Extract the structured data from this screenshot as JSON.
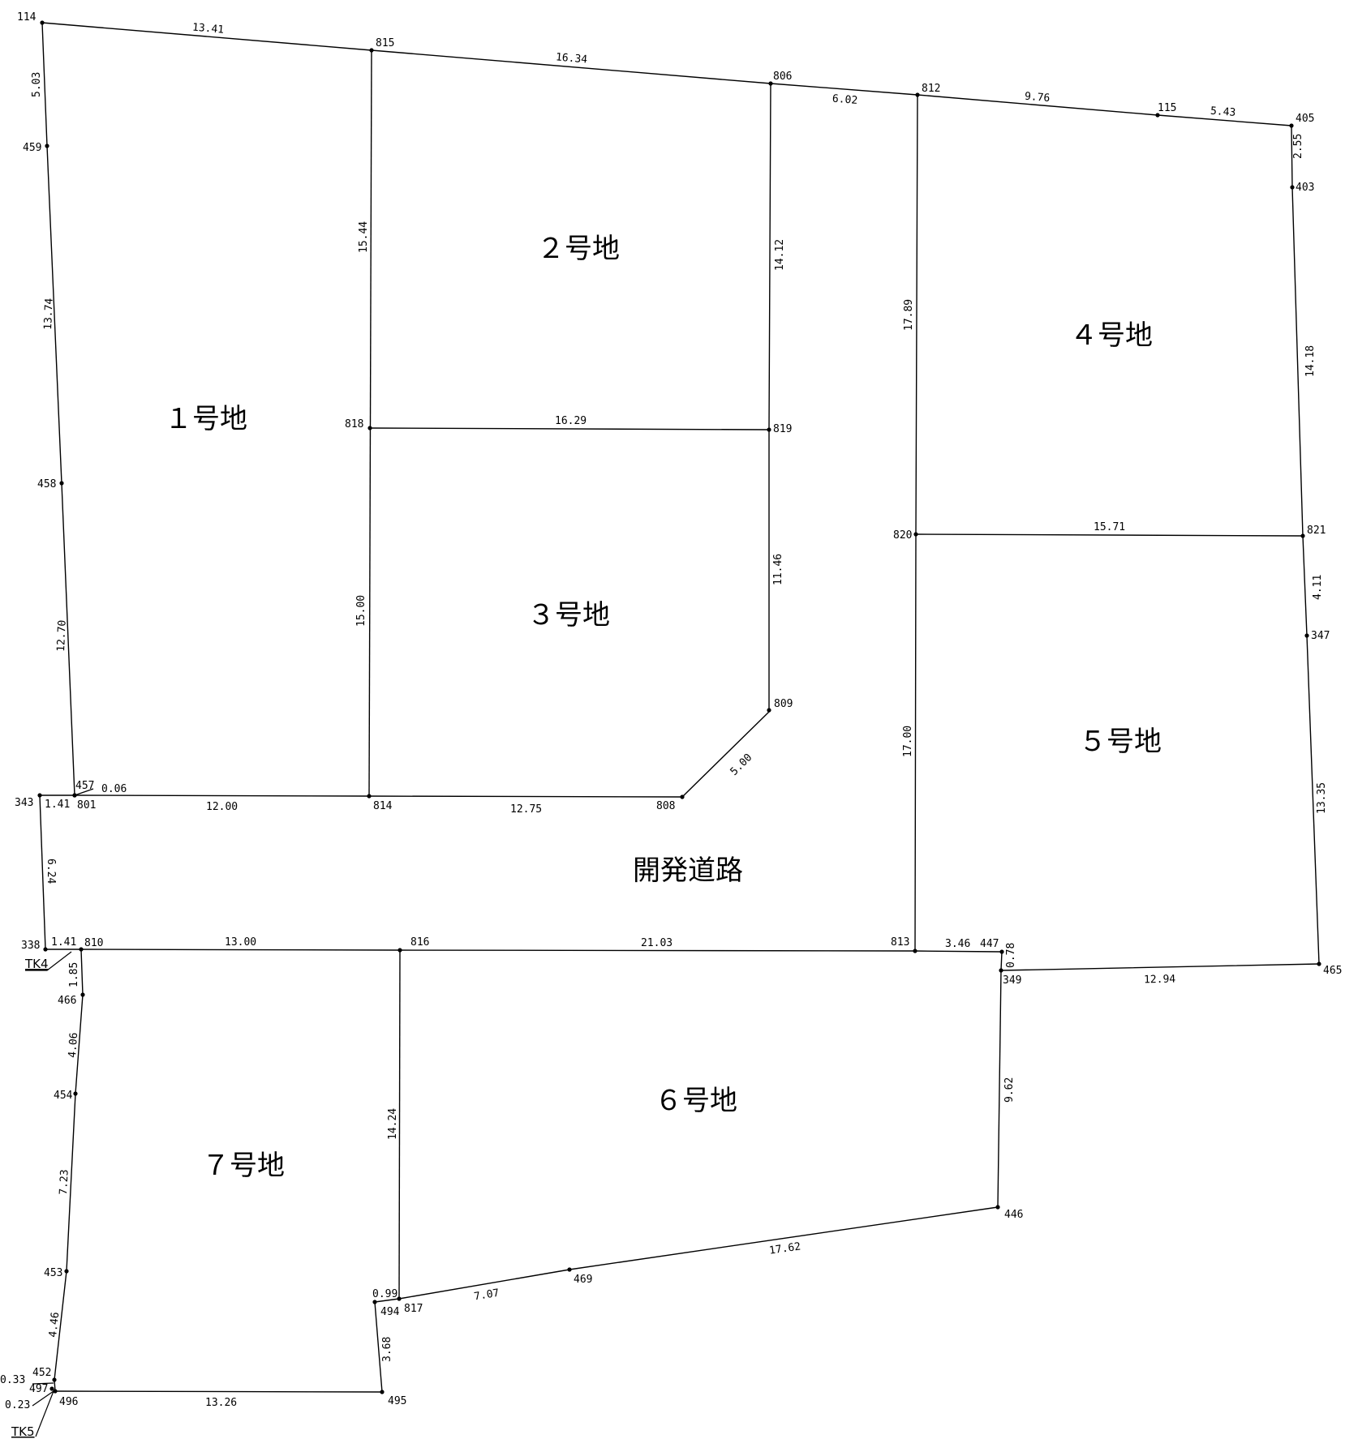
{
  "lots": [
    {
      "id": "lot1",
      "label": "１号地"
    },
    {
      "id": "lot2",
      "label": "２号地"
    },
    {
      "id": "lot3",
      "label": "３号地"
    },
    {
      "id": "lot4",
      "label": "４号地"
    },
    {
      "id": "lot5",
      "label": "５号地"
    },
    {
      "id": "lot6",
      "label": "６号地"
    },
    {
      "id": "lot7",
      "label": "７号地"
    }
  ],
  "road_label": "開発道路",
  "tk_labels": [
    "TK4",
    "TK5"
  ],
  "points": [
    {
      "id": "p114",
      "label": "114"
    },
    {
      "id": "p815",
      "label": "815"
    },
    {
      "id": "p806",
      "label": "806"
    },
    {
      "id": "p812",
      "label": "812"
    },
    {
      "id": "p115",
      "label": "115"
    },
    {
      "id": "p405",
      "label": "405"
    },
    {
      "id": "p403",
      "label": "403"
    },
    {
      "id": "p459",
      "label": "459"
    },
    {
      "id": "p458",
      "label": "458"
    },
    {
      "id": "p818",
      "label": "818"
    },
    {
      "id": "p819",
      "label": "819"
    },
    {
      "id": "p820",
      "label": "820"
    },
    {
      "id": "p821",
      "label": "821"
    },
    {
      "id": "p347",
      "label": "347"
    },
    {
      "id": "p809",
      "label": "809"
    },
    {
      "id": "p457",
      "label": "457"
    },
    {
      "id": "p801",
      "label": "801"
    },
    {
      "id": "p343",
      "label": "343"
    },
    {
      "id": "p814",
      "label": "814"
    },
    {
      "id": "p808",
      "label": "808"
    },
    {
      "id": "p338",
      "label": "338"
    },
    {
      "id": "p810",
      "label": "810"
    },
    {
      "id": "p816",
      "label": "816"
    },
    {
      "id": "p813",
      "label": "813"
    },
    {
      "id": "p447",
      "label": "447"
    },
    {
      "id": "p349",
      "label": "349"
    },
    {
      "id": "p465",
      "label": "465"
    },
    {
      "id": "p466",
      "label": "466"
    },
    {
      "id": "p454",
      "label": "454"
    },
    {
      "id": "p446",
      "label": "446"
    },
    {
      "id": "p453",
      "label": "453"
    },
    {
      "id": "p469",
      "label": "469"
    },
    {
      "id": "p494",
      "label": "494"
    },
    {
      "id": "p817",
      "label": "817"
    },
    {
      "id": "p452",
      "label": "452"
    },
    {
      "id": "p497",
      "label": "497"
    },
    {
      "id": "p496",
      "label": "496"
    },
    {
      "id": "p495",
      "label": "495"
    }
  ],
  "dimensions": [
    "13.41",
    "16.34",
    "6.02",
    "9.76",
    "5.43",
    "2.55",
    "5.03",
    "13.74",
    "12.70",
    "15.44",
    "15.00",
    "16.29",
    "14.12",
    "11.46",
    "5.00",
    "17.89",
    "17.00",
    "15.71",
    "14.18",
    "4.11",
    "13.35",
    "0.06",
    "1.41",
    "12.00",
    "12.75",
    "6.24",
    "1.41",
    "13.00",
    "21.03",
    "3.46",
    "0.78",
    "12.94",
    "1.85",
    "4.06",
    "7.23",
    "4.46",
    "14.24",
    "9.62",
    "0.99",
    "7.07",
    "17.62",
    "3.68",
    "13.26",
    "0.33",
    "0.23"
  ]
}
